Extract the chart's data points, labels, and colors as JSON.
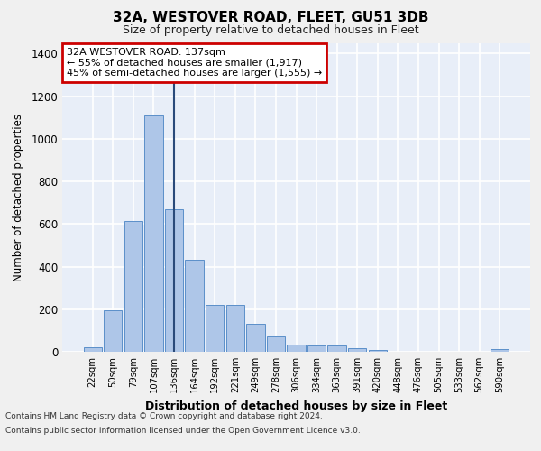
{
  "title": "32A, WESTOVER ROAD, FLEET, GU51 3DB",
  "subtitle": "Size of property relative to detached houses in Fleet",
  "xlabel": "Distribution of detached houses by size in Fleet",
  "ylabel": "Number of detached properties",
  "categories": [
    "22sqm",
    "50sqm",
    "79sqm",
    "107sqm",
    "136sqm",
    "164sqm",
    "192sqm",
    "221sqm",
    "249sqm",
    "278sqm",
    "306sqm",
    "334sqm",
    "363sqm",
    "391sqm",
    "420sqm",
    "448sqm",
    "476sqm",
    "505sqm",
    "533sqm",
    "562sqm",
    "590sqm"
  ],
  "values": [
    20,
    195,
    615,
    1110,
    670,
    430,
    220,
    220,
    130,
    70,
    33,
    30,
    30,
    18,
    10,
    0,
    0,
    0,
    0,
    0,
    13
  ],
  "bar_color": "#aec6e8",
  "bar_edge_color": "#5b8fc9",
  "vline_x_index": 4,
  "vline_color": "#2a4a7a",
  "annotation_text": "32A WESTOVER ROAD: 137sqm\n← 55% of detached houses are smaller (1,917)\n45% of semi-detached houses are larger (1,555) →",
  "annotation_box_facecolor": "#ffffff",
  "annotation_box_edgecolor": "#cc0000",
  "ylim": [
    0,
    1450
  ],
  "yticks": [
    0,
    200,
    400,
    600,
    800,
    1000,
    1200,
    1400
  ],
  "plot_bg_color": "#e8eef8",
  "grid_color": "#ffffff",
  "fig_bg_color": "#f0f0f0",
  "footer_line1": "Contains HM Land Registry data © Crown copyright and database right 2024.",
  "footer_line2": "Contains public sector information licensed under the Open Government Licence v3.0."
}
